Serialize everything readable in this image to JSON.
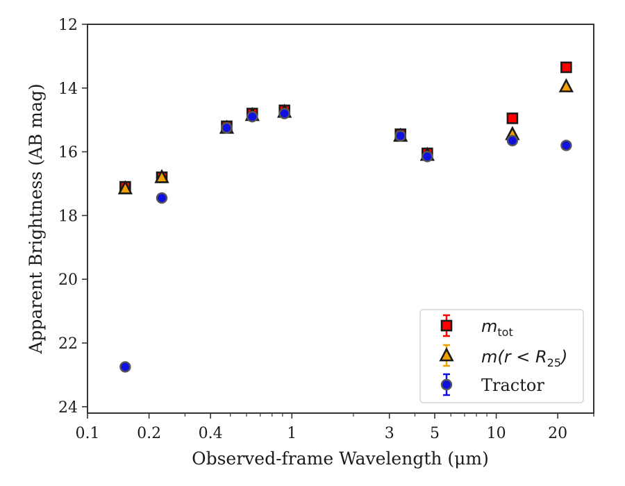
{
  "chart_data": {
    "type": "scatter",
    "title": "",
    "xlabel": "Observed-frame Wavelength (μm)",
    "ylabel": "Apparent Brightness (AB mag)",
    "xscale": "log",
    "xlim": [
      0.1,
      30
    ],
    "ylim": [
      24.2,
      12
    ],
    "y_inverted": true,
    "xticks": [
      0.1,
      0.2,
      0.4,
      1,
      3,
      5,
      10,
      20
    ],
    "xtick_labels": [
      "0.1",
      "0.2",
      "0.4",
      "1",
      "3",
      "5",
      "10",
      "20"
    ],
    "yticks": [
      12,
      14,
      16,
      18,
      20,
      22,
      24
    ],
    "ytick_labels": [
      "12",
      "14",
      "16",
      "18",
      "20",
      "22",
      "24"
    ],
    "legend_position": "lower-right",
    "series": [
      {
        "name_main": "m",
        "name_sub": "tot",
        "marker": "square",
        "color": "#ff0000",
        "edge_color": "#1a1a1a",
        "x": [
          0.153,
          0.231,
          0.48,
          0.64,
          0.92,
          3.4,
          4.6,
          12.0,
          22.0
        ],
        "y": [
          17.1,
          16.8,
          15.2,
          14.8,
          14.7,
          15.45,
          16.05,
          14.95,
          13.35
        ]
      },
      {
        "name_main": "m(r < R",
        "name_sub": "25",
        "name_close": ")",
        "marker": "triangle",
        "color": "#f0a000",
        "edge_color": "#1a1a1a",
        "x": [
          0.153,
          0.231,
          0.48,
          0.64,
          0.92,
          3.4,
          4.6,
          12.0,
          22.0
        ],
        "y": [
          17.15,
          16.8,
          15.25,
          14.85,
          14.75,
          15.5,
          16.1,
          15.45,
          13.95
        ]
      },
      {
        "name": "Tractor",
        "marker": "circle",
        "color": "#1010e0",
        "edge_color": "#555555",
        "x": [
          0.153,
          0.231,
          0.48,
          0.64,
          0.92,
          3.4,
          4.6,
          12.0,
          22.0
        ],
        "y": [
          22.75,
          17.45,
          15.25,
          14.9,
          14.8,
          15.5,
          16.15,
          15.65,
          15.8
        ]
      }
    ]
  }
}
